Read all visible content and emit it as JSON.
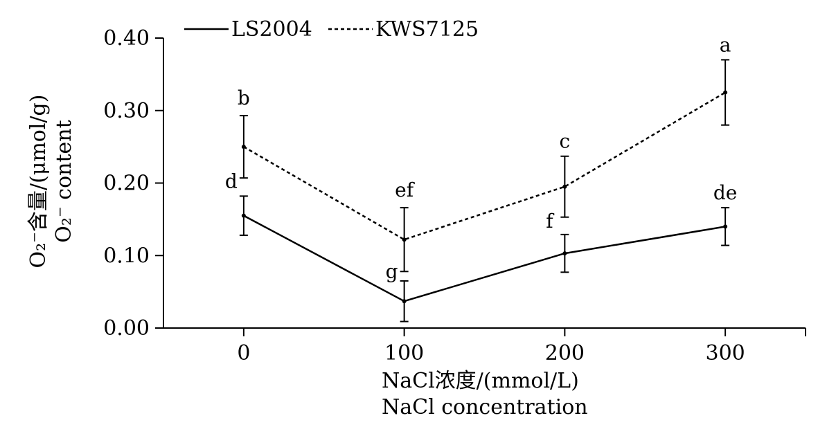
{
  "chart_data": {
    "type": "line",
    "x": [
      0,
      100,
      200,
      300
    ],
    "xlabel": "NaCl浓度/(mmol/L)",
    "xlabel_en": "NaCl concentration",
    "ylabel": "O₂⁻含量/(μmol/g)",
    "ylabel_en": "O₂⁻ content",
    "xlim": [
      -50,
      350
    ],
    "ylim": [
      0,
      0.4
    ],
    "xticks": [
      "0",
      "100",
      "200",
      "300"
    ],
    "yticks": [
      "0.00",
      "0.10",
      "0.20",
      "0.30",
      "0.40"
    ],
    "grid": false,
    "legend_position": "top-left",
    "series": [
      {
        "name": "LS2004",
        "style": "solid",
        "values": [
          0.155,
          0.037,
          0.103,
          0.14
        ],
        "errors": [
          0.027,
          0.028,
          0.026,
          0.026
        ],
        "letters": [
          "d",
          "g",
          "f",
          "de"
        ]
      },
      {
        "name": "KWS7125",
        "style": "dashed",
        "values": [
          0.25,
          0.122,
          0.195,
          0.325
        ],
        "errors": [
          0.043,
          0.044,
          0.042,
          0.045
        ],
        "letters": [
          "b",
          "ef",
          "c",
          "a"
        ]
      }
    ]
  }
}
